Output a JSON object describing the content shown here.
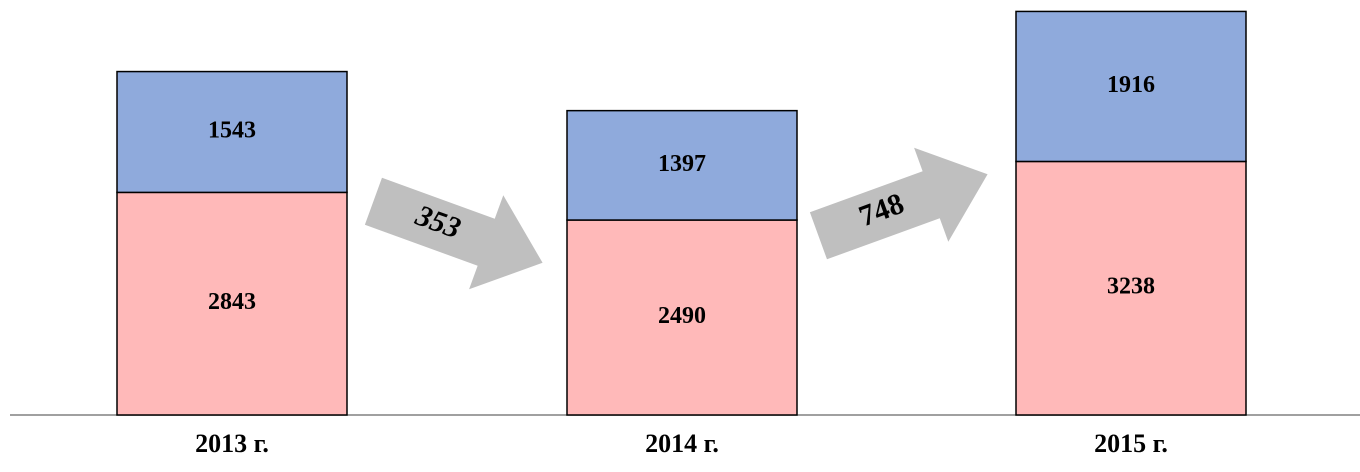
{
  "chart_data": {
    "type": "bar",
    "stacked": true,
    "categories": [
      "2013 г.",
      "2014 г.",
      "2015 г."
    ],
    "series": [
      {
        "color": "#ffb9b9",
        "values": [
          2843,
          2490,
          3238
        ]
      },
      {
        "color": "#8faadc",
        "values": [
          1543,
          1397,
          1916
        ]
      }
    ],
    "ylim": [
      0,
      5300
    ],
    "annotations": [
      {
        "text": "353",
        "color": "#bfbfbf"
      },
      {
        "text": "748",
        "color": "#bfbfbf"
      }
    ]
  }
}
